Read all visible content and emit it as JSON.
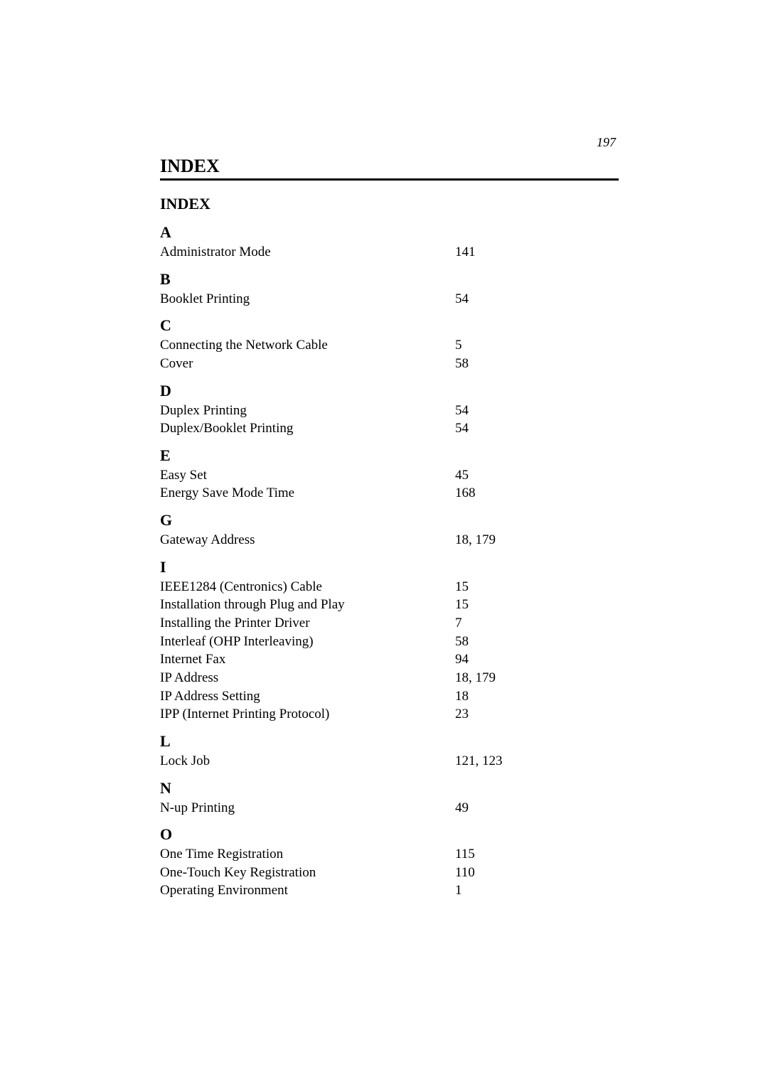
{
  "page_number": "197",
  "title_main": "INDEX",
  "title_sub": "INDEX",
  "sections": {
    "A": {
      "letter": "A",
      "entries": [
        {
          "term": "Administrator Mode",
          "page": "141"
        }
      ]
    },
    "B": {
      "letter": "B",
      "entries": [
        {
          "term": "Booklet Printing",
          "page": "54"
        }
      ]
    },
    "C": {
      "letter": "C",
      "entries": [
        {
          "term": "Connecting the Network Cable",
          "page": "5"
        },
        {
          "term": "Cover",
          "page": "58"
        }
      ]
    },
    "D": {
      "letter": "D",
      "entries": [
        {
          "term": "Duplex Printing",
          "page": "54"
        },
        {
          "term": "Duplex/Booklet Printing",
          "page": "54"
        }
      ]
    },
    "E": {
      "letter": "E",
      "entries": [
        {
          "term": "Easy Set",
          "page": "45"
        },
        {
          "term": "Energy Save Mode Time",
          "page": "168"
        }
      ]
    },
    "G": {
      "letter": "G",
      "entries": [
        {
          "term": "Gateway Address",
          "page": "18, 179"
        }
      ]
    },
    "I": {
      "letter": "I",
      "entries": [
        {
          "term": "IEEE1284 (Centronics) Cable",
          "page": "15"
        },
        {
          "term": "Installation through Plug and Play",
          "page": "15"
        },
        {
          "term": "Installing the Printer Driver",
          "page": "7"
        },
        {
          "term": "Interleaf (OHP Interleaving)",
          "page": "58"
        },
        {
          "term": "Internet Fax",
          "page": "94"
        },
        {
          "term": "IP Address",
          "page": "18, 179"
        },
        {
          "term": "IP Address Setting",
          "page": "18"
        },
        {
          "term": "IPP (Internet Printing Protocol)",
          "page": "23"
        }
      ]
    },
    "L": {
      "letter": "L",
      "entries": [
        {
          "term": "Lock Job",
          "page": "121, 123"
        }
      ]
    },
    "N": {
      "letter": "N",
      "entries": [
        {
          "term": "N-up Printing",
          "page": "49"
        }
      ]
    },
    "O": {
      "letter": "O",
      "entries": [
        {
          "term": "One Time Registration",
          "page": "115"
        },
        {
          "term": "One-Touch Key Registration",
          "page": "110"
        },
        {
          "term": "Operating Environment",
          "page": "1"
        }
      ]
    }
  },
  "styling": {
    "background_color": "#ffffff",
    "text_color": "#000000",
    "font_family": "Times New Roman",
    "title_fontsize": 26,
    "subtitle_fontsize": 22,
    "letter_fontsize": 22,
    "entry_fontsize": 19,
    "page_number_fontsize": 18,
    "rule_thickness": 3,
    "term_column_width": 415
  }
}
